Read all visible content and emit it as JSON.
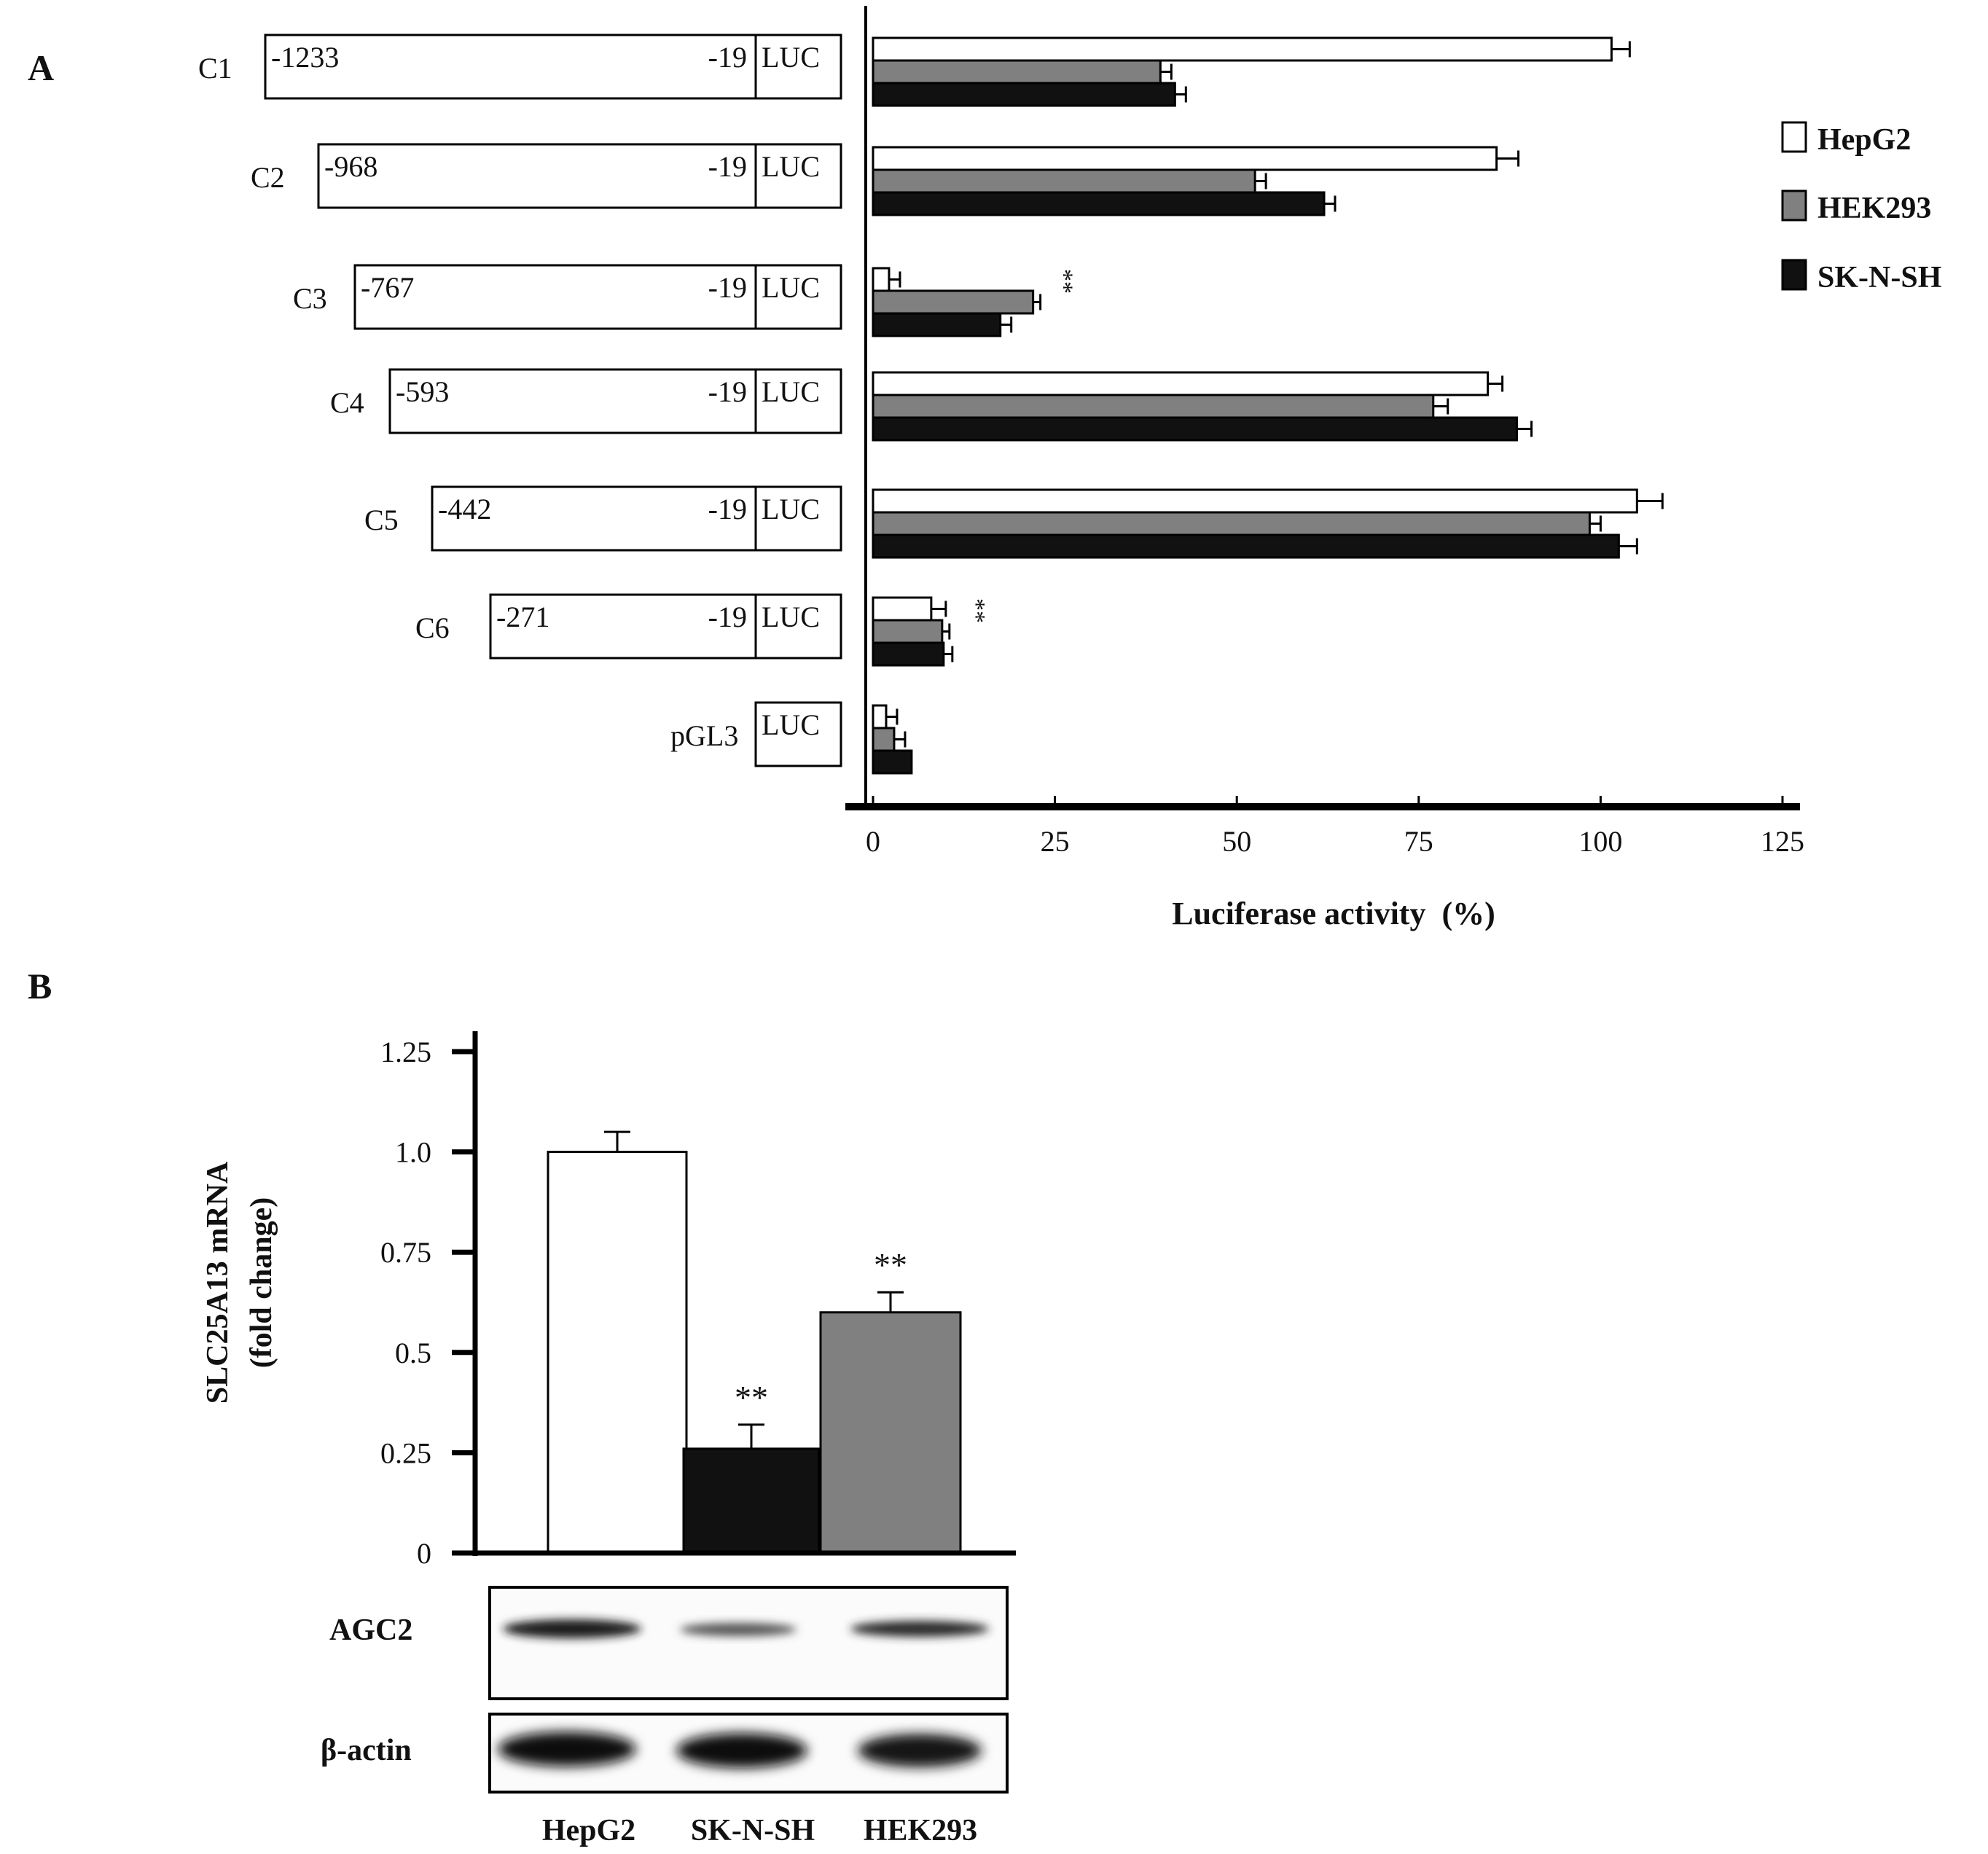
{
  "figure": {
    "panel_a_label": "A",
    "panel_b_label": "B"
  },
  "colors": {
    "HepG2": "#ffffff",
    "HEK293": "#808080",
    "SK-N-SH": "#111111",
    "axis": "#000000"
  },
  "chart_data": [
    {
      "type": "bar",
      "orientation": "horizontal",
      "panel": "A",
      "categories": [
        "C1",
        "C2",
        "C3",
        "C4",
        "C5",
        "C6",
        "pGL3"
      ],
      "constructs": [
        {
          "label": "C1",
          "start": "-1233",
          "end": "-19",
          "luc": "LUC"
        },
        {
          "label": "C2",
          "start": "-968",
          "end": "-19",
          "luc": "LUC"
        },
        {
          "label": "C3",
          "start": "-767",
          "end": "-19",
          "luc": "LUC"
        },
        {
          "label": "C4",
          "start": "-593",
          "end": "-19",
          "luc": "LUC"
        },
        {
          "label": "C5",
          "start": "-442",
          "end": "-19",
          "luc": "LUC"
        },
        {
          "label": "C6",
          "start": "-271",
          "end": "-19",
          "luc": "LUC"
        },
        {
          "label": "pGL3",
          "start": "",
          "end": "",
          "luc": "LUC"
        }
      ],
      "series": [
        {
          "name": "HepG2",
          "values": [
            101.5,
            85.7,
            2.2,
            84.5,
            105,
            8,
            1.8
          ],
          "errors": [
            2.5,
            3,
            1.5,
            2,
            3.5,
            2,
            1.5
          ]
        },
        {
          "name": "HEK293",
          "values": [
            39.5,
            52.5,
            22,
            77,
            98.5,
            9.5,
            2.9
          ],
          "errors": [
            1.5,
            1.5,
            1,
            2,
            1.5,
            1,
            1.5
          ]
        },
        {
          "name": "SK-N-SH",
          "values": [
            41.5,
            62,
            17.5,
            88.5,
            102.5,
            9.7,
            5.3
          ],
          "errors": [
            1.5,
            1.5,
            1.5,
            2,
            2.5,
            1.2,
            0
          ]
        }
      ],
      "significance": [
        {
          "category": "C3",
          "text": "**"
        },
        {
          "category": "C6",
          "text": "**"
        }
      ],
      "xticks": [
        "0",
        "25",
        "50",
        "75",
        "100",
        "125"
      ],
      "xlim": [
        0,
        125
      ],
      "xlabel": "Luciferase activity  (%)",
      "legend": [
        "HepG2",
        "HEK293",
        "SK-N-SH"
      ],
      "legend_position": "right",
      "grid": false
    },
    {
      "type": "bar",
      "orientation": "vertical",
      "panel": "B",
      "categories": [
        "HepG2",
        "SK-N-SH",
        "HEK293"
      ],
      "values": [
        1.0,
        0.26,
        0.6
      ],
      "errors": [
        0.05,
        0.06,
        0.05
      ],
      "significance": [
        "",
        "**",
        "**"
      ],
      "ylabel_line1": "SLC25A13 mRNA",
      "ylabel_line2": "(fold change)",
      "yticks": [
        "0",
        "0.25",
        "0.5",
        "0.75",
        "1.0",
        "1.25"
      ],
      "ylim": [
        0,
        1.25
      ],
      "grid": false
    }
  ],
  "blot": {
    "rows": [
      "AGC2",
      "β-actin"
    ],
    "lanes": [
      "HepG2",
      "SK-N-SH",
      "HEK293"
    ]
  }
}
